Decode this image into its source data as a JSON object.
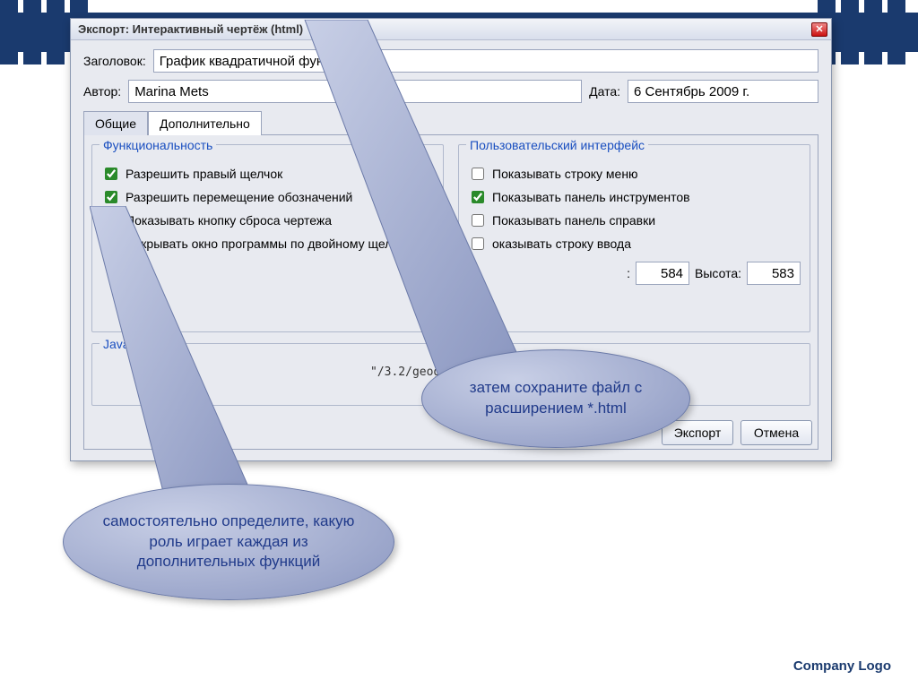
{
  "slide": {
    "brand_color": "#1a3a6e",
    "footer_logo": "Company Logo"
  },
  "window": {
    "title": "Экспорт: Интерактивный чертёж (html)",
    "header": {
      "title_label": "Заголовок:",
      "title_value": "График квадратичной функции",
      "author_label": "Автор:",
      "author_value": "Marina Mets",
      "date_label": "Дата:",
      "date_value": "6 Сентябрь 2009 г."
    },
    "tabs": {
      "general": "Общие",
      "advanced": "Дополнительно",
      "active_index": 1
    },
    "functionality": {
      "group_title": "Функциональность",
      "items": [
        {
          "label": "Разрешить правый щелчок",
          "checked": true
        },
        {
          "label": "Разрешить перемещение обозначений",
          "checked": true
        },
        {
          "label": "Показывать кнопку сброса чертежа",
          "checked": true
        },
        {
          "label": "Открывать окно программы по двойному щелчку",
          "checked": true
        }
      ]
    },
    "ui_group": {
      "group_title": "Пользовательский интерфейс",
      "items": [
        {
          "label": "Показывать строку меню",
          "checked": false
        },
        {
          "label": "Показывать панель инструментов",
          "checked": true
        },
        {
          "label": "Показывать панель справки",
          "checked": false
        },
        {
          "label": "оказывать строку ввода",
          "checked": false
        }
      ],
      "width_trailing": ":",
      "width_value": "584",
      "height_label": "Высота:",
      "height_value": "583"
    },
    "applet": {
      "group_title": "Java Apple",
      "jar_fragment": "\"/3.2/geogebra.jar\""
    },
    "buttons": {
      "export": "Экспорт",
      "cancel": "Отмена"
    }
  },
  "callouts": {
    "right": "затем сохраните файл с расширением *.html",
    "left": "самостоятельно определите, какую роль играет каждая из дополнительных функций"
  },
  "style": {
    "window_bg": "#e8eaf0",
    "group_title_color": "#1a4fc0",
    "callout_text_color": "#203a8a",
    "callout_fill_light": "#c8cfe6",
    "callout_fill_dark": "#8a96c0"
  }
}
